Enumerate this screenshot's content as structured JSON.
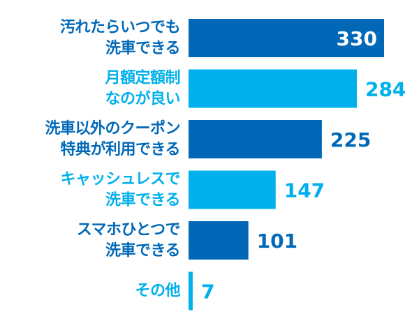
{
  "chart_data": {
    "type": "bar",
    "orientation": "horizontal",
    "title": "",
    "xlabel": "",
    "ylabel": "",
    "categories": [
      [
        "汚れたらいつでも",
        "洗車できる"
      ],
      [
        "月額定額制",
        "なのが良い"
      ],
      [
        "洗車以外のクーポン",
        "特典が利用できる"
      ],
      [
        "キャッシュレスで",
        "洗車できる"
      ],
      [
        "スマホひとつで",
        "洗車できる"
      ],
      [
        "その他"
      ]
    ],
    "values": [
      330,
      284,
      225,
      147,
      101,
      7
    ],
    "bar_colors": [
      "#0068b7",
      "#00b0ec",
      "#0068b7",
      "#00b0ec",
      "#0068b7",
      "#00b0ec"
    ],
    "label_colors": [
      "#0068b7",
      "#00b0ec",
      "#0068b7",
      "#00b0ec",
      "#0068b7",
      "#00b0ec"
    ],
    "value_label_colors": [
      "#ffffff",
      "#00b0ec",
      "#0068b7",
      "#00b0ec",
      "#0068b7",
      "#00b0ec"
    ],
    "value_label_inside": [
      true,
      false,
      false,
      false,
      false,
      false
    ],
    "xlim": [
      0,
      340
    ],
    "grid": false,
    "legend": "none"
  }
}
